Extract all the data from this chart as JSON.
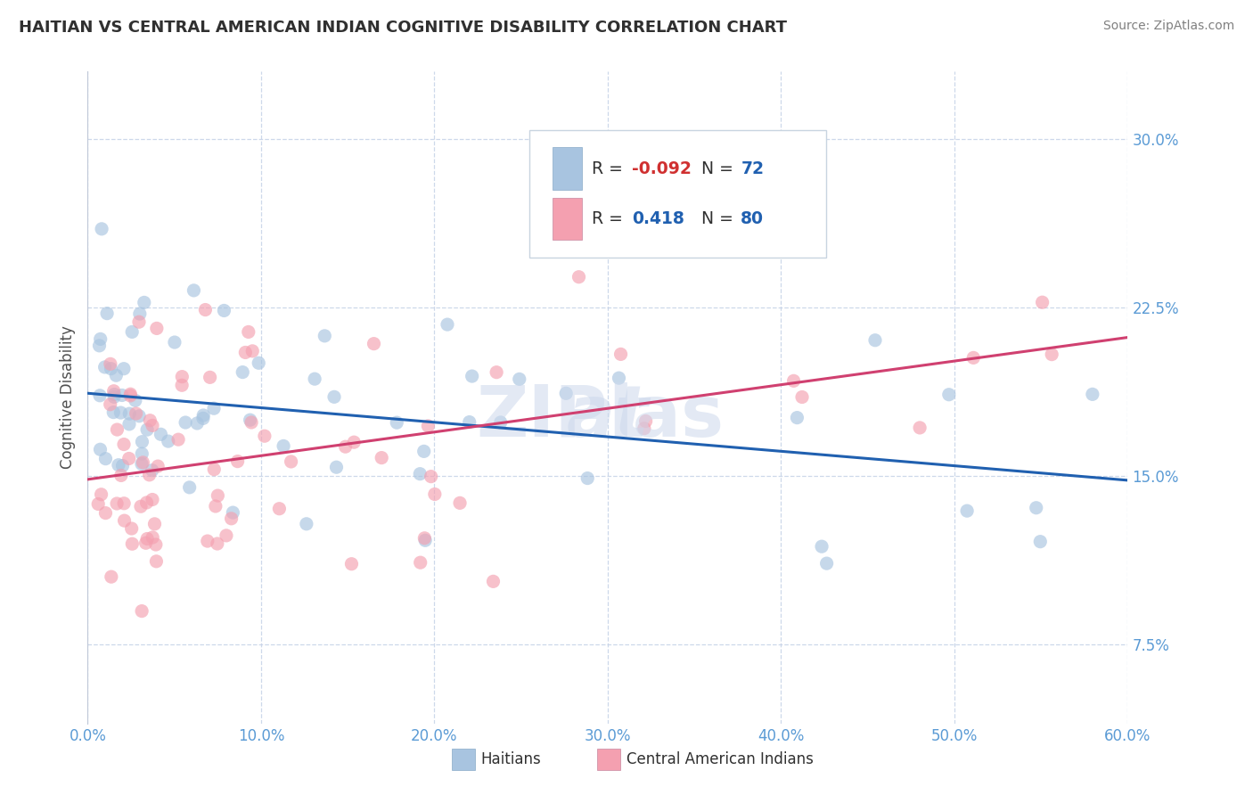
{
  "title": "HAITIAN VS CENTRAL AMERICAN INDIAN COGNITIVE DISABILITY CORRELATION CHART",
  "source": "Source: ZipAtlas.com",
  "ylabel": "Cognitive Disability",
  "haitian_R": -0.092,
  "haitian_N": 72,
  "central_R": 0.418,
  "central_N": 80,
  "haitian_color": "#a8c4e0",
  "central_color": "#f4a0b0",
  "haitian_line_color": "#2060b0",
  "central_line_color": "#d04070",
  "title_color": "#303030",
  "axis_label_color": "#5b9bd5",
  "ylabel_color": "#505050",
  "watermark_color": "#ccd8ec",
  "xlim": [
    0.0,
    0.6
  ],
  "ylim": [
    0.04,
    0.33
  ],
  "yticks": [
    0.075,
    0.15,
    0.225,
    0.3
  ],
  "xticks": [
    0.0,
    0.1,
    0.2,
    0.3,
    0.4,
    0.5,
    0.6
  ]
}
